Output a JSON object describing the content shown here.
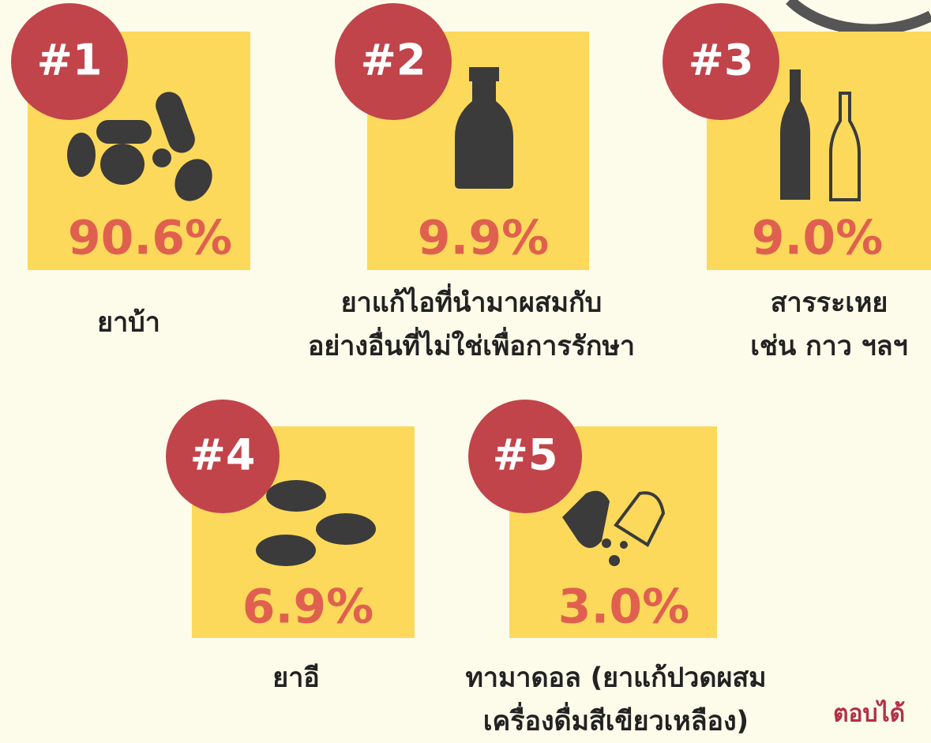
{
  "items": [
    {
      "rank": "#1",
      "value": "90.6%",
      "label": [
        "ยาบ้า"
      ]
    },
    {
      "rank": "#2",
      "value": "9.9%",
      "label": [
        "ยาแก้ไอที่นำมาผสมกับ",
        "อย่างอื่นที่ไม่ใช่เพื่อการรักษา"
      ]
    },
    {
      "rank": "#3",
      "value": "9.0%",
      "label": [
        "สารระเหย",
        "เช่น กาว ฯลฯ"
      ]
    },
    {
      "rank": "#4",
      "value": "6.9%",
      "label": [
        "ยาอี"
      ]
    },
    {
      "rank": "#5",
      "value": "3.0%",
      "label": [
        "ทามาดอล (ยาแก้ปวดผสม",
        "เครื่องดื่มสีเขียวเหลือง)"
      ]
    }
  ],
  "footer": "ตอบได้"
}
